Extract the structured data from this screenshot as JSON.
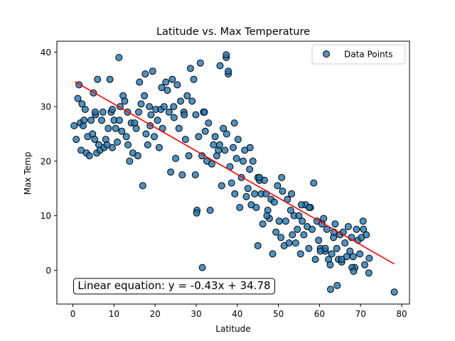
{
  "chart_data": {
    "type": "scatter",
    "title": "Latitude vs. Max Temperature",
    "xlabel": "Latitude",
    "ylabel": "Max Temp",
    "xlim": [
      -3.9,
      81.9
    ],
    "ylim": [
      -6.2,
      42.0
    ],
    "xticks": [
      0,
      10,
      20,
      30,
      40,
      50,
      60,
      70,
      80
    ],
    "yticks": [
      0,
      10,
      20,
      30,
      40
    ],
    "grid": false,
    "legend": {
      "position": "top-right",
      "entries": [
        "Data Points"
      ]
    },
    "colors": {
      "points": "#1f77b4",
      "point_edge": "#000000",
      "regression": "#ff0000",
      "annotation_text": "#ff0000"
    },
    "regression": {
      "slope": -0.43,
      "intercept": 34.78,
      "x_range": [
        0.5,
        78.2
      ]
    },
    "annotation": {
      "text": "Linear equation: y = -0.43x + 34.78",
      "at": [
        0.5,
        -2.8
      ]
    },
    "series": [
      {
        "name": "Data Points",
        "x": [
          0.3,
          0.8,
          1.2,
          1.5,
          1.8,
          2.0,
          2.2,
          2.5,
          3.0,
          3.3,
          3.6,
          4.0,
          4.4,
          4.8,
          5.0,
          5.3,
          5.5,
          5.8,
          6.0,
          6.3,
          6.6,
          7.0,
          7.3,
          7.6,
          8.0,
          8.3,
          8.6,
          9.0,
          9.3,
          9.6,
          10.0,
          10.4,
          10.8,
          11.2,
          11.5,
          11.9,
          12.2,
          12.6,
          13.0,
          13.4,
          13.8,
          14.2,
          14.6,
          15.0,
          15.4,
          15.8,
          16.2,
          16.6,
          17.0,
          17.4,
          17.8,
          18.2,
          18.6,
          19.0,
          19.4,
          19.8,
          20.2,
          20.6,
          21.0,
          21.4,
          21.8,
          22.2,
          22.6,
          23.0,
          23.4,
          23.8,
          24.2,
          24.6,
          25.0,
          25.4,
          25.8,
          26.2,
          26.6,
          27.0,
          27.4,
          27.8,
          28.2,
          28.6,
          29.0,
          29.4,
          29.8,
          30.2,
          30.6,
          31.0,
          31.4,
          31.8,
          32.2,
          32.6,
          33.0,
          33.4,
          33.8,
          34.2,
          34.6,
          35.0,
          35.4,
          35.8,
          36.2,
          36.6,
          37.0,
          37.4,
          37.8,
          38.2,
          38.6,
          39.0,
          39.4,
          39.8,
          40.2,
          40.6,
          41.0,
          41.4,
          41.8,
          42.2,
          42.6,
          43.0,
          43.4,
          43.8,
          44.2,
          44.6,
          45.0,
          45.4,
          45.8,
          46.2,
          46.6,
          47.0,
          47.4,
          47.8,
          48.2,
          48.6,
          49.0,
          49.4,
          49.8,
          50.2,
          50.6,
          51.0,
          51.4,
          51.8,
          52.2,
          52.6,
          53.0,
          53.4,
          53.8,
          54.2,
          54.6,
          55.0,
          55.4,
          55.8,
          56.2,
          56.6,
          57.0,
          57.4,
          57.8,
          58.2,
          58.6,
          59.0,
          59.4,
          59.8,
          60.2,
          60.6,
          61.0,
          61.4,
          61.8,
          62.2,
          62.6,
          63.0,
          63.4,
          63.8,
          64.2,
          64.6,
          65.0,
          65.4,
          65.8,
          66.2,
          66.6,
          67.0,
          67.4,
          67.8,
          68.2,
          68.6,
          69.0,
          69.4,
          69.8,
          70.2,
          70.6,
          71.0,
          71.4,
          72.0,
          78.2,
          2.7,
          5.4,
          9.6,
          11.3,
          13.3,
          16.0,
          18.8,
          21.6,
          24.5,
          27.1,
          29.9,
          32.0,
          35.7,
          37.3,
          39.3,
          43.1,
          45.4,
          47.2,
          50.8,
          53.2,
          55.6,
          57.5,
          61.4,
          63.5,
          65.4,
          67.9,
          70.7,
          30.1,
          31.5,
          17.6,
          37.3,
          37.8,
          45.0,
          60.2,
          62.7,
          64.3,
          68.3,
          72.1
        ],
        "y": [
          26.5,
          24.0,
          31.5,
          34.0,
          27.0,
          22.0,
          30.5,
          26.5,
          29.5,
          21.5,
          24.5,
          21.0,
          27.5,
          25.0,
          32.5,
          24.0,
          28.5,
          21.5,
          35.0,
          23.0,
          22.0,
          27.5,
          29.0,
          22.5,
          24.0,
          23.0,
          26.0,
          35.0,
          29.0,
          22.5,
          27.5,
          26.0,
          23.5,
          39.0,
          30.0,
          25.5,
          32.0,
          31.0,
          24.5,
          23.0,
          20.0,
          27.0,
          21.5,
          27.0,
          26.0,
          21.0,
          34.5,
          30.5,
          15.5,
          32.0,
          25.0,
          23.0,
          30.0,
          28.5,
          36.5,
          24.5,
          29.5,
          27.5,
          22.5,
          29.5,
          26.0,
          30.0,
          34.5,
          33.0,
          29.0,
          18.0,
          35.0,
          28.0,
          20.5,
          34.0,
          26.0,
          31.0,
          17.5,
          29.0,
          24.0,
          32.0,
          21.0,
          37.0,
          31.0,
          35.0,
          17.5,
          11.0,
          24.5,
          38.0,
          21.0,
          29.0,
          25.5,
          20.0,
          27.0,
          11.0,
          19.5,
          23.0,
          24.5,
          21.0,
          22.0,
          37.5,
          15.5,
          26.0,
          22.0,
          25.0,
          36.0,
          19.0,
          16.0,
          22.5,
          14.0,
          20.5,
          24.0,
          11.5,
          17.0,
          20.0,
          22.0,
          13.5,
          15.0,
          18.5,
          12.0,
          20.0,
          14.0,
          11.5,
          17.0,
          16.5,
          14.0,
          8.5,
          16.5,
          14.0,
          11.0,
          9.5,
          13.0,
          3.0,
          12.5,
          7.0,
          15.5,
          9.0,
          6.0,
          14.5,
          4.5,
          9.0,
          13.0,
          5.0,
          11.0,
          6.5,
          10.0,
          5.0,
          7.5,
          10.0,
          3.0,
          9.0,
          6.5,
          12.0,
          8.0,
          4.0,
          11.5,
          7.5,
          16.0,
          2.0,
          9.0,
          5.5,
          4.0,
          8.5,
          9.5,
          3.5,
          7.5,
          2.0,
          1.0,
          3.0,
          6.0,
          8.5,
          4.0,
          2.0,
          6.5,
          1.5,
          7.0,
          5.0,
          2.5,
          8.0,
          3.5,
          6.0,
          2.5,
          0.5,
          7.5,
          5.5,
          3.0,
          6.0,
          9.0,
          1.0,
          6.5,
          -0.5,
          -4.0,
          27.5,
          29.0,
          29.5,
          27.5,
          29.0,
          29.0,
          26.5,
          33.5,
          30.0,
          28.5,
          28.5,
          29.0,
          23.0,
          39.0,
          27.0,
          22.5,
          17.0,
          10.0,
          17.0,
          14.0,
          12.0,
          11.5,
          4.0,
          7.0,
          2.0,
          0.5,
          7.5,
          10.5,
          0.5,
          36.0,
          39.5,
          36.5,
          4.5,
          3.5,
          -3.5,
          -2.8,
          -0.2,
          2.2
        ]
      }
    ]
  }
}
